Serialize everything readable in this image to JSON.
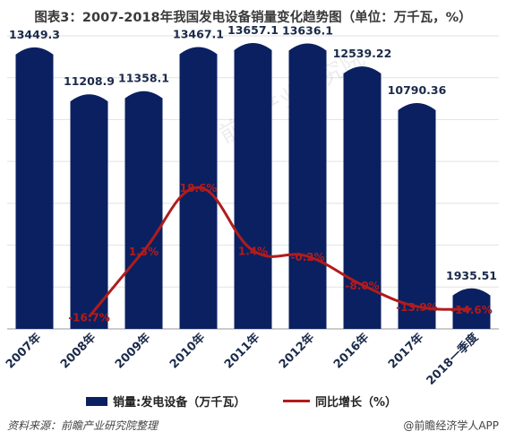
{
  "title": "图表3：2007-2018年我国发电设备销量变化趋势图（单位：万千瓦，%）",
  "source": "资料来源：前瞻产业研究院整理",
  "brand": "@前瞻经济学人APP",
  "watermark": "前瞻产业研究院",
  "colors": {
    "bar": "#0b2060",
    "line": "#b01c1c",
    "growth_label": "#b01c1c",
    "grid": "#e2e2e2",
    "axis": "#999999"
  },
  "chart_data": {
    "type": "bar",
    "categories": [
      "2007年",
      "2008年",
      "2009年",
      "2010年",
      "2011年",
      "2012年",
      "2016年",
      "2017年",
      "2018一季度"
    ],
    "ylim": [
      0,
      14000
    ],
    "y2lim": [
      -20,
      60
    ],
    "grid": true,
    "legend_position": "bottom",
    "series": [
      {
        "name": "销量:发电设备（万千瓦）",
        "type": "bar",
        "values": [
          13449.3,
          11208.9,
          11358.1,
          13467.1,
          13657.1,
          13636.1,
          12539.22,
          10790.36,
          1935.51
        ],
        "labels": [
          "13449.3",
          "11208.9",
          "11358.1",
          "13467.1",
          "13657.1",
          "13636.1",
          "12539.22",
          "10790.36",
          "1935.51"
        ]
      },
      {
        "name": "同比增长（%）",
        "type": "line",
        "axis": "secondary",
        "values": [
          null,
          -16.7,
          1.3,
          18.6,
          1.4,
          -0.2,
          -8.0,
          -13.9,
          -14.6
        ],
        "labels": [
          "",
          "-16.7%",
          "1.3%",
          "18.6%",
          "1.4%",
          "-0.2%",
          "-8.0%",
          "-13.9%",
          "-14.6%"
        ]
      }
    ]
  }
}
